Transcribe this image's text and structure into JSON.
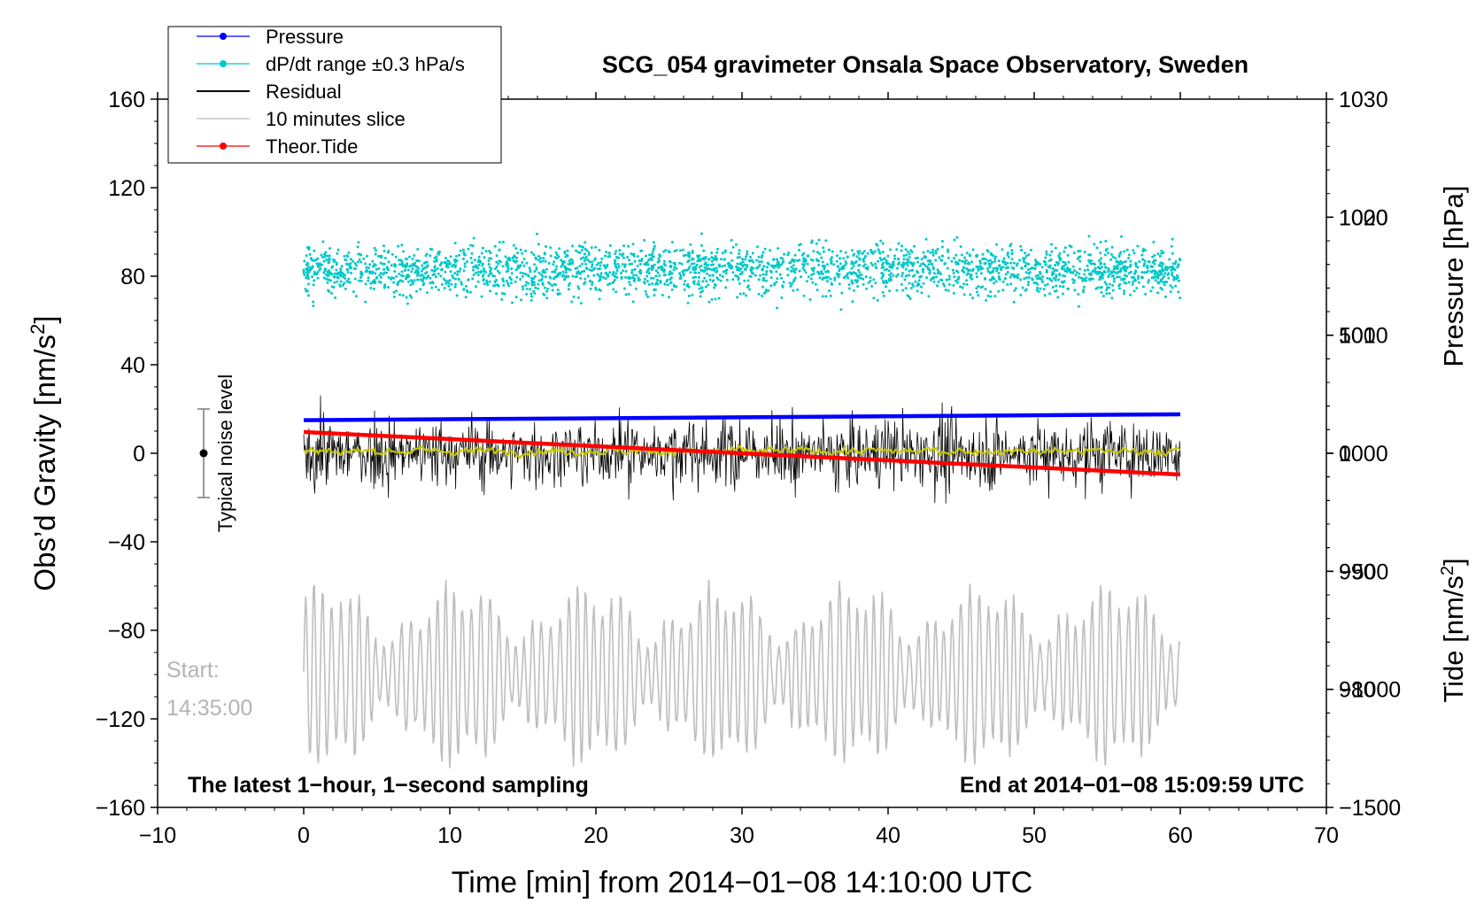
{
  "chart_data": {
    "type": "line",
    "title": "SCG_054 gravimeter Onsala Space Observatory, Sweden",
    "xlabel": "Time [min] from 2014−01−08 14:10:00 UTC",
    "ylabel_main": "Obs’d Gravity [nm/s",
    "ylabel_main_sup": "2",
    "ylabel_main_close": "]",
    "ylabel_pressure": "Pressure [hPa]",
    "ylabel_tide": "Tide [nm/s",
    "ylabel_tide_sup": "2",
    "ylabel_tide_close": "]",
    "xlim": [
      -10,
      70
    ],
    "ylim": [
      -160,
      160
    ],
    "pressure_lim": [
      970,
      1030
    ],
    "tide_lim": [
      -1500,
      1500
    ],
    "x_ticks": [
      "−10",
      "0",
      "10",
      "20",
      "30",
      "40",
      "50",
      "60",
      "70"
    ],
    "x_tick_values": [
      -10,
      0,
      10,
      20,
      30,
      40,
      50,
      60,
      70
    ],
    "y_ticks": [
      "160",
      "120",
      "80",
      "40",
      "0",
      "−40",
      "−80",
      "−120",
      "−160"
    ],
    "y_tick_values": [
      160,
      120,
      80,
      40,
      0,
      -40,
      -80,
      -120,
      -160
    ],
    "pressure_ticks": [
      "1030",
      "1020",
      "1010",
      "1000",
      "990",
      "980"
    ],
    "pressure_tick_values": [
      1030,
      1020,
      1010,
      1000,
      990,
      980
    ],
    "tide_ticks": [
      "1000",
      "500",
      "0",
      "−500",
      "−1000",
      "−1500"
    ],
    "tide_tick_values": [
      1000,
      500,
      0,
      -500,
      -1000,
      -1500
    ],
    "legend": [
      {
        "label": "Pressure",
        "color": "#0000ff",
        "marker": true
      },
      {
        "label": "dP/dt range ±0.3 hPa/s",
        "color": "#00c8c8",
        "marker": true
      },
      {
        "label": "Residual",
        "color": "#000000",
        "marker": false
      },
      {
        "label": "10 minutes slice",
        "color": "#bebebe",
        "marker": false
      },
      {
        "label": "Theor.Tide",
        "color": "#ff0000",
        "marker": true
      }
    ],
    "series": [
      {
        "name": "Pressure",
        "axis": "pressure",
        "x_range": [
          0,
          60
        ],
        "start": 1002.8,
        "end": 1003.3,
        "color": "#0000ff"
      },
      {
        "name": "dP/dt range ±0.3 hPa/s",
        "axis": "main",
        "x_range": [
          0,
          60
        ],
        "center": 83,
        "spread": 12,
        "color": "#00c8c8"
      },
      {
        "name": "Residual",
        "axis": "main",
        "x_range": [
          0,
          60
        ],
        "center": 0,
        "amplitude": 25,
        "color": "#000000"
      },
      {
        "name": "Residual smoothed",
        "axis": "main",
        "x_range": [
          0,
          60
        ],
        "center": 1,
        "amplitude": 3,
        "color": "#c8c800"
      },
      {
        "name": "10 minutes slice",
        "axis": "main",
        "x_range": [
          0,
          60
        ],
        "center": -100,
        "amplitude": 30,
        "color": "#bebebe"
      },
      {
        "name": "Theor.Tide",
        "axis": "tide",
        "x_range": [
          0,
          60
        ],
        "start": 90,
        "end": -90,
        "color": "#ff0000"
      }
    ],
    "annotations": {
      "noise_label": "Typical noise level",
      "noise_range": [
        -20,
        20
      ],
      "slice_start_label": "Start:",
      "slice_start_time": "14:35:00",
      "bottom_left": "The latest 1−hour, 1−second sampling",
      "bottom_right": "End at 2014−01−08 15:09:59 UTC"
    }
  }
}
